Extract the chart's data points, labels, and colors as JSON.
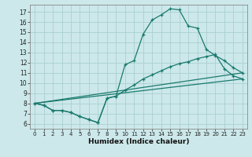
{
  "title": "",
  "xlabel": "Humidex (Indice chaleur)",
  "bg_color": "#cce8ea",
  "grid_color": "#aacfd2",
  "line_color": "#1a7a6e",
  "xlim": [
    -0.5,
    23.5
  ],
  "ylim": [
    5.5,
    17.7
  ],
  "xticks": [
    0,
    1,
    2,
    3,
    4,
    5,
    6,
    7,
    8,
    9,
    10,
    11,
    12,
    13,
    14,
    15,
    16,
    17,
    18,
    19,
    20,
    21,
    22,
    23
  ],
  "yticks": [
    6,
    7,
    8,
    9,
    10,
    11,
    12,
    13,
    14,
    15,
    16,
    17
  ],
  "line1_x": [
    0,
    1,
    2,
    3,
    4,
    5,
    6,
    7,
    8,
    9,
    10,
    11,
    12,
    13,
    14,
    15,
    16,
    17,
    18,
    19,
    20,
    21,
    22,
    23
  ],
  "line1_y": [
    8.0,
    7.8,
    7.3,
    7.3,
    7.1,
    6.7,
    6.4,
    6.1,
    8.5,
    8.7,
    11.8,
    12.2,
    14.8,
    16.2,
    16.7,
    17.3,
    17.2,
    15.6,
    15.4,
    13.3,
    12.7,
    12.2,
    11.5,
    11.0
  ],
  "line2_x": [
    0,
    1,
    2,
    3,
    4,
    5,
    6,
    7,
    8,
    9,
    10,
    11,
    12,
    13,
    14,
    15,
    16,
    17,
    18,
    19,
    20,
    21,
    22,
    23
  ],
  "line2_y": [
    8.0,
    7.8,
    7.3,
    7.3,
    7.1,
    6.7,
    6.4,
    6.1,
    8.5,
    8.7,
    9.3,
    9.8,
    10.4,
    10.8,
    11.2,
    11.6,
    11.9,
    12.1,
    12.4,
    12.6,
    12.8,
    11.4,
    10.7,
    10.4
  ],
  "line3_x": [
    0,
    23
  ],
  "line3_y": [
    8.0,
    10.4
  ],
  "line4_x": [
    0,
    23
  ],
  "line4_y": [
    8.0,
    11.0
  ]
}
